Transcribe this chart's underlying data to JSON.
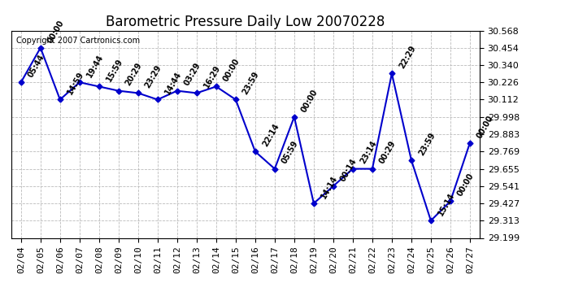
{
  "title": "Barometric Pressure Daily Low 20070228",
  "copyright": "Copyright 2007 Cartronics.com",
  "dates": [
    "02/04",
    "02/05",
    "02/06",
    "02/07",
    "02/08",
    "02/09",
    "02/10",
    "02/11",
    "02/12",
    "02/13",
    "02/14",
    "02/15",
    "02/16",
    "02/17",
    "02/18",
    "02/19",
    "02/20",
    "02/21",
    "02/22",
    "02/23",
    "02/24",
    "02/25",
    "02/26",
    "02/27"
  ],
  "values": [
    30.226,
    30.454,
    30.112,
    30.226,
    30.198,
    30.17,
    30.155,
    30.112,
    30.17,
    30.155,
    30.198,
    30.112,
    29.769,
    29.655,
    29.998,
    29.427,
    29.541,
    29.655,
    29.655,
    30.284,
    29.712,
    29.313,
    29.441,
    29.826
  ],
  "annotations": [
    "05:44",
    "00:00",
    "14:59",
    "19:44",
    "15:59",
    "20:29",
    "23:29",
    "14:44",
    "03:29",
    "16:29",
    "00:00",
    "23:59",
    "22:14",
    "05:59",
    "00:00",
    "14:14",
    "00:14",
    "23:14",
    "00:29",
    "22:29",
    "23:59",
    "15:14",
    "00:00",
    "00:00"
  ],
  "line_color": "#0000CC",
  "marker_color": "#0000CC",
  "bg_color": "#FFFFFF",
  "grid_color": "#BBBBBB",
  "ylim_min": 29.199,
  "ylim_max": 30.568,
  "yticks": [
    29.199,
    29.313,
    29.427,
    29.541,
    29.655,
    29.769,
    29.883,
    29.998,
    30.112,
    30.226,
    30.34,
    30.454,
    30.568
  ],
  "title_fontsize": 12,
  "annotation_fontsize": 7,
  "tick_fontsize": 8,
  "copyright_fontsize": 7
}
